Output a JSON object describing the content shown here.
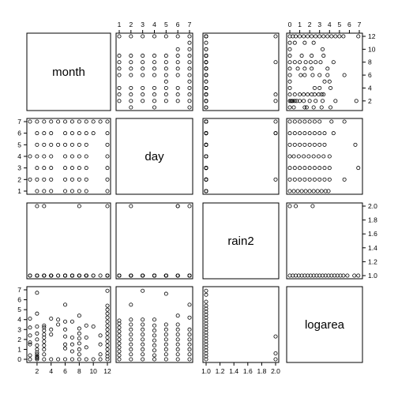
{
  "chart_data": {
    "type": "scatter",
    "variables": [
      "month",
      "day",
      "rain2",
      "logarea"
    ],
    "ranges": {
      "month": [
        1,
        12
      ],
      "day": [
        1,
        7
      ],
      "rain2": [
        1,
        2
      ],
      "logarea": [
        0,
        7
      ]
    },
    "axes": {
      "top_month": [
        "1",
        "2",
        "3",
        "4",
        "5",
        "6",
        "7"
      ],
      "top_logarea": [
        "0",
        "1",
        "2",
        "3",
        "4",
        "5",
        "6",
        "7"
      ],
      "right_month": [
        "2",
        "4",
        "6",
        "8",
        "10",
        "12"
      ],
      "right_rain2": [
        "1.0",
        "1.2",
        "1.4",
        "1.6",
        "1.8",
        "2.0"
      ],
      "left_day": [
        "1",
        "2",
        "3",
        "4",
        "5",
        "6",
        "7"
      ],
      "left_logarea": [
        "0",
        "1",
        "2",
        "3",
        "4",
        "5",
        "6",
        "7"
      ],
      "bottom_month": [
        "2",
        "4",
        "6",
        "8",
        "10",
        "12"
      ],
      "bottom_rain2": [
        "1.0",
        "1.2",
        "1.4",
        "1.6",
        "1.8",
        "2.0"
      ]
    },
    "month_day_pairs": [
      [
        1,
        2
      ],
      [
        1,
        4
      ],
      [
        1,
        7
      ],
      [
        2,
        1
      ],
      [
        2,
        2
      ],
      [
        2,
        3
      ],
      [
        2,
        4
      ],
      [
        2,
        5
      ],
      [
        2,
        6
      ],
      [
        2,
        7
      ],
      [
        3,
        1
      ],
      [
        3,
        2
      ],
      [
        3,
        3
      ],
      [
        3,
        4
      ],
      [
        3,
        5
      ],
      [
        3,
        6
      ],
      [
        3,
        7
      ],
      [
        4,
        1
      ],
      [
        4,
        2
      ],
      [
        4,
        3
      ],
      [
        4,
        4
      ],
      [
        4,
        5
      ],
      [
        4,
        6
      ],
      [
        4,
        7
      ],
      [
        5,
        5
      ],
      [
        5,
        7
      ],
      [
        6,
        1
      ],
      [
        6,
        2
      ],
      [
        6,
        3
      ],
      [
        6,
        4
      ],
      [
        6,
        5
      ],
      [
        6,
        6
      ],
      [
        6,
        7
      ],
      [
        7,
        1
      ],
      [
        7,
        2
      ],
      [
        7,
        3
      ],
      [
        7,
        4
      ],
      [
        7,
        5
      ],
      [
        7,
        6
      ],
      [
        7,
        7
      ],
      [
        8,
        1
      ],
      [
        8,
        2
      ],
      [
        8,
        3
      ],
      [
        8,
        4
      ],
      [
        8,
        5
      ],
      [
        8,
        6
      ],
      [
        8,
        7
      ],
      [
        9,
        1
      ],
      [
        9,
        2
      ],
      [
        9,
        3
      ],
      [
        9,
        4
      ],
      [
        9,
        5
      ],
      [
        9,
        6
      ],
      [
        9,
        7
      ],
      [
        10,
        6
      ],
      [
        10,
        7
      ],
      [
        11,
        7
      ],
      [
        12,
        1
      ],
      [
        12,
        2
      ],
      [
        12,
        3
      ],
      [
        12,
        4
      ],
      [
        12,
        5
      ],
      [
        12,
        6
      ],
      [
        12,
        7
      ]
    ],
    "rain2_high": [
      [
        2,
        2
      ],
      [
        3,
        6
      ],
      [
        8,
        6
      ],
      [
        12,
        7
      ]
    ],
    "month_logarea": [
      [
        1,
        0
      ],
      [
        1,
        0.4
      ],
      [
        1,
        1.5
      ],
      [
        1,
        1.7
      ],
      [
        1,
        2.4
      ],
      [
        1,
        3.2
      ],
      [
        1,
        4.1
      ],
      [
        2,
        0
      ],
      [
        2,
        0.1
      ],
      [
        2,
        0.2
      ],
      [
        2,
        0.3
      ],
      [
        2,
        0.5
      ],
      [
        2,
        0.7
      ],
      [
        2,
        1.0
      ],
      [
        2,
        1.4
      ],
      [
        2,
        2.0
      ],
      [
        2,
        2.6
      ],
      [
        2,
        3.3
      ],
      [
        2,
        4.6
      ],
      [
        2,
        6.7
      ],
      [
        3,
        0
      ],
      [
        3,
        0.5
      ],
      [
        3,
        1.0
      ],
      [
        3,
        1.4
      ],
      [
        3,
        1.8
      ],
      [
        3,
        2.2
      ],
      [
        3,
        2.5
      ],
      [
        3,
        2.9
      ],
      [
        3,
        3.2
      ],
      [
        3,
        3.4
      ],
      [
        4,
        0
      ],
      [
        4,
        2.5
      ],
      [
        4,
        3.0
      ],
      [
        4,
        4.1
      ],
      [
        5,
        0
      ],
      [
        5,
        3.5
      ],
      [
        5,
        4.0
      ],
      [
        6,
        0
      ],
      [
        6,
        1.1
      ],
      [
        6,
        1.5
      ],
      [
        6,
        2.3
      ],
      [
        6,
        3.0
      ],
      [
        6,
        3.8
      ],
      [
        6,
        5.5
      ],
      [
        7,
        0
      ],
      [
        7,
        0.8
      ],
      [
        7,
        1.5
      ],
      [
        7,
        2.2
      ],
      [
        7,
        3.8
      ],
      [
        8,
        0
      ],
      [
        8,
        0.5
      ],
      [
        8,
        1.0
      ],
      [
        8,
        1.6
      ],
      [
        8,
        2.1
      ],
      [
        8,
        2.6
      ],
      [
        8,
        3.1
      ],
      [
        8,
        4.4
      ],
      [
        9,
        0
      ],
      [
        9,
        1.2
      ],
      [
        9,
        2.2
      ],
      [
        9,
        3.4
      ],
      [
        10,
        0
      ],
      [
        10,
        3.3
      ],
      [
        11,
        0
      ],
      [
        11,
        0.5
      ],
      [
        11,
        1.5
      ],
      [
        11,
        2.4
      ],
      [
        12,
        0
      ],
      [
        12,
        0.3
      ],
      [
        12,
        0.6
      ],
      [
        12,
        1.0
      ],
      [
        12,
        1.4
      ],
      [
        12,
        1.8
      ],
      [
        12,
        2.2
      ],
      [
        12,
        2.6
      ],
      [
        12,
        3.0
      ],
      [
        12,
        3.4
      ],
      [
        12,
        3.8
      ],
      [
        12,
        4.2
      ],
      [
        12,
        4.6
      ],
      [
        12,
        5.0
      ],
      [
        12,
        5.4
      ],
      [
        12,
        6.9
      ]
    ],
    "day_logarea": [
      [
        1,
        0
      ],
      [
        1,
        0.4
      ],
      [
        1,
        0.8
      ],
      [
        1,
        1.2
      ],
      [
        1,
        1.6
      ],
      [
        1,
        2.0
      ],
      [
        1,
        2.4
      ],
      [
        1,
        2.8
      ],
      [
        1,
        3.2
      ],
      [
        1,
        3.6
      ],
      [
        1,
        3.9
      ],
      [
        2,
        0
      ],
      [
        2,
        0.5
      ],
      [
        2,
        1.0
      ],
      [
        2,
        1.5
      ],
      [
        2,
        2.0
      ],
      [
        2,
        2.5
      ],
      [
        2,
        3.0
      ],
      [
        2,
        3.5
      ],
      [
        2,
        4.0
      ],
      [
        2,
        5.5
      ],
      [
        3,
        0
      ],
      [
        3,
        0.5
      ],
      [
        3,
        1.0
      ],
      [
        3,
        1.5
      ],
      [
        3,
        2.0
      ],
      [
        3,
        2.5
      ],
      [
        3,
        3.0
      ],
      [
        3,
        3.5
      ],
      [
        3,
        4.0
      ],
      [
        3,
        6.9
      ],
      [
        4,
        0
      ],
      [
        4,
        0.4
      ],
      [
        4,
        0.9
      ],
      [
        4,
        1.4
      ],
      [
        4,
        1.9
      ],
      [
        4,
        2.4
      ],
      [
        4,
        2.9
      ],
      [
        4,
        3.4
      ],
      [
        4,
        4.0
      ],
      [
        5,
        0
      ],
      [
        5,
        0.5
      ],
      [
        5,
        1.0
      ],
      [
        5,
        1.5
      ],
      [
        5,
        2.0
      ],
      [
        5,
        2.5
      ],
      [
        5,
        3.0
      ],
      [
        5,
        3.5
      ],
      [
        5,
        6.6
      ],
      [
        6,
        0
      ],
      [
        6,
        0.5
      ],
      [
        6,
        1.0
      ],
      [
        6,
        1.5
      ],
      [
        6,
        2.0
      ],
      [
        6,
        2.5
      ],
      [
        6,
        3.0
      ],
      [
        6,
        3.5
      ],
      [
        6,
        4.4
      ],
      [
        7,
        0
      ],
      [
        7,
        0.5
      ],
      [
        7,
        1.0
      ],
      [
        7,
        1.5
      ],
      [
        7,
        2.0
      ],
      [
        7,
        2.5
      ],
      [
        7,
        3.0
      ],
      [
        7,
        4.2
      ],
      [
        7,
        5.5
      ]
    ],
    "rain2_logarea": [
      [
        1,
        0
      ],
      [
        1,
        0.3
      ],
      [
        1,
        0.6
      ],
      [
        1,
        0.9
      ],
      [
        1,
        1.2
      ],
      [
        1,
        1.5
      ],
      [
        1,
        1.8
      ],
      [
        1,
        2.1
      ],
      [
        1,
        2.4
      ],
      [
        1,
        2.7
      ],
      [
        1,
        3.0
      ],
      [
        1,
        3.3
      ],
      [
        1,
        3.6
      ],
      [
        1,
        3.9
      ],
      [
        1,
        4.2
      ],
      [
        1,
        4.5
      ],
      [
        1,
        4.8
      ],
      [
        1,
        5.1
      ],
      [
        1,
        5.4
      ],
      [
        1,
        5.8
      ],
      [
        1,
        6.5
      ],
      [
        1,
        6.9
      ],
      [
        2,
        0
      ],
      [
        2,
        0.6
      ],
      [
        2,
        2.3
      ]
    ],
    "logarea_rain2_high": [
      0.0,
      0.6,
      2.3
    ]
  }
}
